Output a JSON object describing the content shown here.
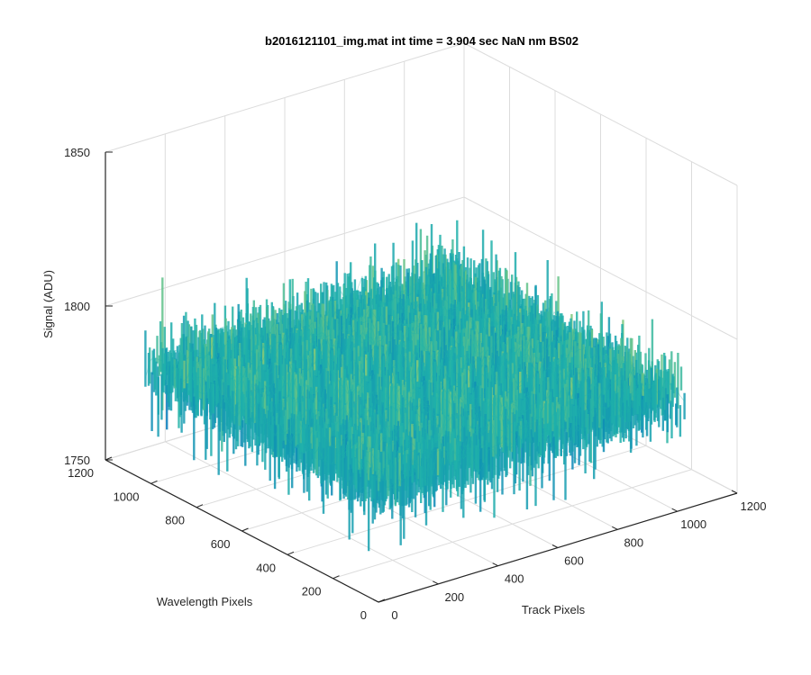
{
  "chart_data": {
    "type": "surface",
    "title": "b2016121101_img.mat int time = 3.904 sec  NaN nm BS02",
    "xlabel": "Track Pixels",
    "ylabel": "Wavelength Pixels",
    "zlabel": "Signal (ADU)",
    "xlim": [
      0,
      1200
    ],
    "ylim": [
      0,
      1200
    ],
    "zlim": [
      1750,
      1850
    ],
    "x_ticks": [
      0,
      200,
      400,
      600,
      800,
      1000,
      1200
    ],
    "y_ticks": [
      0,
      200,
      400,
      600,
      800,
      1000,
      1200
    ],
    "z_ticks": [
      1750,
      1800,
      1850
    ],
    "x_tick_labels": [
      "0",
      "200",
      "400",
      "600",
      "800",
      "1000",
      "1200"
    ],
    "y_tick_labels": [
      "0",
      "200",
      "400",
      "600",
      "800",
      "1000",
      "1200"
    ],
    "z_tick_labels": [
      "1750",
      "1800",
      "1850"
    ],
    "data_extent": {
      "x": [
        0,
        1024
      ],
      "y": [
        0,
        1024
      ]
    },
    "signal_mean": 1787,
    "signal_range": [
      1762,
      1822
    ],
    "grid": true,
    "colormap": "parula",
    "colors": {
      "low": "#0072bd",
      "mid": "#20b2aa",
      "high": "#f0e442"
    }
  }
}
